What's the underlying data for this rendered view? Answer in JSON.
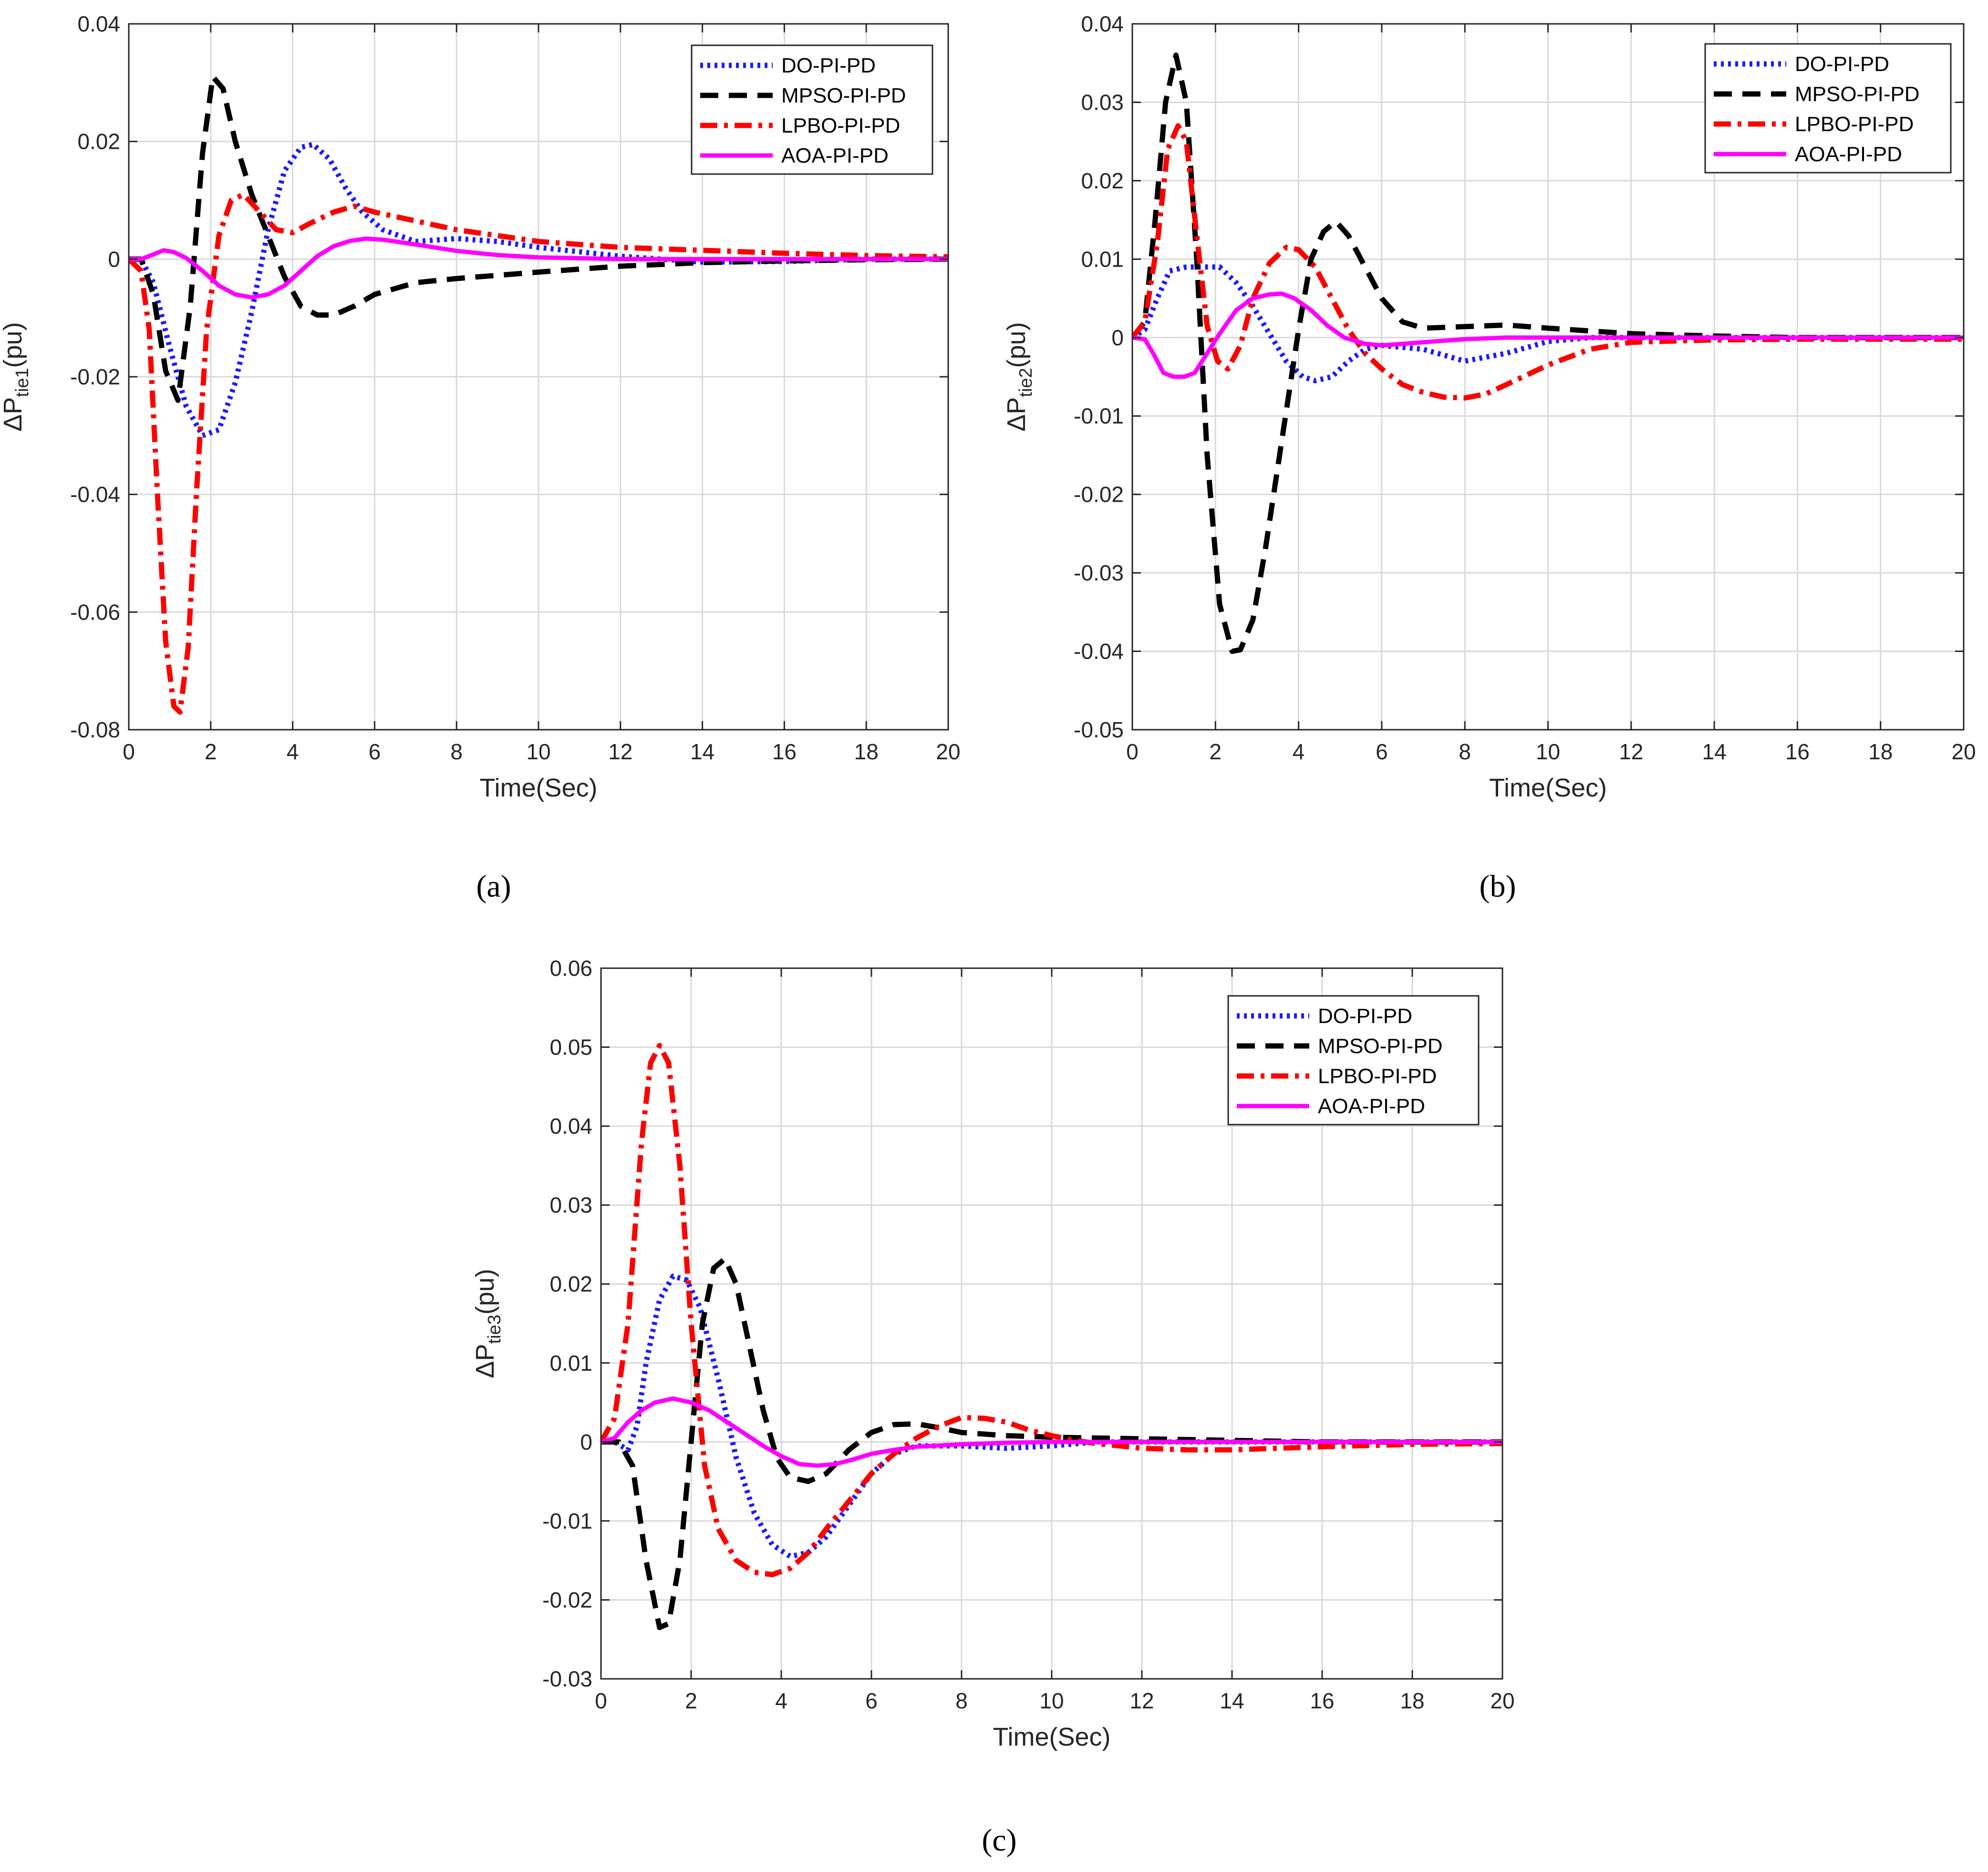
{
  "colors": {
    "DO-PI-PD": "#1a1aff",
    "MPSO-PI-PD": "#000000",
    "LPBO-PI-PD": "#ff0000",
    "AOA-PI-PD": "#ff00ff"
  },
  "chart_data": [
    {
      "type": "line",
      "panel_label": "(a)",
      "title": "",
      "xlabel": "Time(Sec)",
      "ylabel_main": "ΔP",
      "ylabel_sub": "tie1",
      "ylabel_tail": "(pu)",
      "xlim": [
        0,
        20
      ],
      "ylim": [
        -0.08,
        0.04
      ],
      "xticks": [
        0,
        2,
        4,
        6,
        8,
        10,
        12,
        14,
        16,
        18,
        20
      ],
      "yticks": [
        -0.08,
        -0.06,
        -0.04,
        -0.02,
        0,
        0.02,
        0.04
      ],
      "xtick_labels": [
        "0",
        "2",
        "4",
        "6",
        "8",
        "10",
        "12",
        "14",
        "16",
        "18",
        "20"
      ],
      "ytick_labels": [
        "-0.08",
        "-0.06",
        "-0.04",
        "-0.02",
        "0",
        "0.02",
        "0.04"
      ],
      "grid": true,
      "legend_position": "top-right",
      "series": [
        {
          "name": "DO-PI-PD",
          "style": "dotted",
          "x": [
            0,
            0.3,
            0.6,
            1.0,
            1.4,
            1.8,
            2.2,
            2.6,
            3.0,
            3.4,
            3.8,
            4.2,
            4.5,
            4.9,
            5.3,
            5.7,
            6.2,
            7,
            8,
            9,
            10,
            12,
            14,
            16,
            18,
            20
          ],
          "y": [
            0,
            0,
            -0.004,
            -0.015,
            -0.025,
            -0.03,
            -0.029,
            -0.021,
            -0.009,
            0.005,
            0.015,
            0.019,
            0.0195,
            0.017,
            0.012,
            0.008,
            0.005,
            0.003,
            0.0035,
            0.003,
            0.002,
            0.0005,
            -0.0005,
            -0.0004,
            0,
            0
          ]
        },
        {
          "name": "MPSO-PI-PD",
          "style": "dashed",
          "x": [
            0,
            0.3,
            0.6,
            0.9,
            1.2,
            1.5,
            1.8,
            2.05,
            2.3,
            2.6,
            3.0,
            3.4,
            3.8,
            4.2,
            4.6,
            5.0,
            5.5,
            6.0,
            7,
            8,
            10,
            12,
            14,
            16,
            18,
            20
          ],
          "y": [
            0,
            0,
            -0.006,
            -0.019,
            -0.024,
            -0.008,
            0.018,
            0.031,
            0.029,
            0.02,
            0.011,
            0.004,
            -0.003,
            -0.008,
            -0.0095,
            -0.0095,
            -0.008,
            -0.006,
            -0.004,
            -0.0033,
            -0.0022,
            -0.0012,
            -0.0006,
            -0.0003,
            -0.0001,
            0
          ]
        },
        {
          "name": "LPBO-PI-PD",
          "style": "dashdot",
          "x": [
            0,
            0.3,
            0.5,
            0.7,
            0.9,
            1.1,
            1.25,
            1.45,
            1.65,
            1.9,
            2.2,
            2.5,
            2.8,
            3.2,
            3.6,
            4.0,
            4.4,
            5.0,
            5.5,
            6,
            7,
            8,
            10,
            12,
            14,
            16,
            18,
            20
          ],
          "y": [
            0,
            -0.002,
            -0.012,
            -0.04,
            -0.065,
            -0.076,
            -0.077,
            -0.066,
            -0.04,
            -0.012,
            0.004,
            0.01,
            0.011,
            0.008,
            0.005,
            0.0045,
            0.006,
            0.008,
            0.009,
            0.008,
            0.0065,
            0.005,
            0.003,
            0.002,
            0.0015,
            0.001,
            0.0006,
            0.0004
          ]
        },
        {
          "name": "AOA-PI-PD",
          "style": "solid",
          "x": [
            0,
            0.3,
            0.6,
            0.85,
            1.1,
            1.4,
            1.8,
            2.2,
            2.6,
            3.0,
            3.4,
            3.8,
            4.2,
            4.6,
            5.0,
            5.4,
            5.8,
            6.2,
            7,
            8,
            9,
            10,
            12,
            14,
            16,
            18,
            20
          ],
          "y": [
            0,
            0,
            0.0008,
            0.0015,
            0.0012,
            0.0002,
            -0.002,
            -0.0045,
            -0.006,
            -0.0065,
            -0.006,
            -0.0045,
            -0.002,
            0.0005,
            0.0022,
            0.0031,
            0.0035,
            0.0033,
            0.0025,
            0.0014,
            0.0007,
            0.0003,
            0,
            0,
            0,
            0,
            0
          ]
        }
      ]
    },
    {
      "type": "line",
      "panel_label": "(b)",
      "title": "",
      "xlabel": "Time(Sec)",
      "ylabel_main": "ΔP",
      "ylabel_sub": "tie2",
      "ylabel_tail": "(pu)",
      "xlim": [
        0,
        20
      ],
      "ylim": [
        -0.05,
        0.04
      ],
      "xticks": [
        0,
        2,
        4,
        6,
        8,
        10,
        12,
        14,
        16,
        18,
        20
      ],
      "yticks": [
        -0.05,
        -0.04,
        -0.03,
        -0.02,
        -0.01,
        0,
        0.01,
        0.02,
        0.03,
        0.04
      ],
      "xtick_labels": [
        "0",
        "2",
        "4",
        "6",
        "8",
        "10",
        "12",
        "14",
        "16",
        "18",
        "20"
      ],
      "ytick_labels": [
        "-0.05",
        "-0.04",
        "-0.03",
        "-0.02",
        "-0.01",
        "0",
        "0.01",
        "0.02",
        "0.03",
        "0.04"
      ],
      "grid": true,
      "legend_position": "top-right",
      "series": [
        {
          "name": "DO-PI-PD",
          "style": "dotted",
          "x": [
            0,
            0.3,
            0.6,
            0.9,
            1.3,
            1.7,
            2.1,
            2.5,
            2.9,
            3.3,
            3.7,
            4.1,
            4.4,
            4.8,
            5.2,
            5.6,
            6.0,
            7,
            8,
            9,
            10,
            11,
            12,
            14,
            16,
            18,
            20
          ],
          "y": [
            0,
            0.001,
            0.005,
            0.0085,
            0.009,
            0.009,
            0.009,
            0.007,
            0.004,
            0.0005,
            -0.003,
            -0.005,
            -0.0055,
            -0.005,
            -0.003,
            -0.0015,
            -0.001,
            -0.0015,
            -0.003,
            -0.002,
            -0.0005,
            0,
            0,
            0,
            0,
            0,
            0
          ]
        },
        {
          "name": "MPSO-PI-PD",
          "style": "dashed",
          "x": [
            0,
            0.3,
            0.55,
            0.8,
            1.05,
            1.3,
            1.55,
            1.8,
            2.1,
            2.4,
            2.6,
            2.9,
            3.2,
            3.6,
            4.0,
            4.3,
            4.6,
            4.9,
            5.2,
            5.6,
            6.0,
            6.5,
            7,
            8,
            9,
            10,
            12,
            14,
            16,
            18,
            20
          ],
          "y": [
            0,
            0.002,
            0.015,
            0.03,
            0.036,
            0.03,
            0.01,
            -0.015,
            -0.034,
            -0.04,
            -0.0398,
            -0.036,
            -0.027,
            -0.013,
            0.001,
            0.01,
            0.0135,
            0.0148,
            0.013,
            0.009,
            0.005,
            0.002,
            0.0012,
            0.0014,
            0.0016,
            0.0012,
            0.0005,
            0.0002,
            0,
            0,
            0
          ]
        },
        {
          "name": "LPBO-PI-PD",
          "style": "dashdot",
          "x": [
            0,
            0.3,
            0.6,
            0.85,
            1.1,
            1.3,
            1.55,
            1.8,
            2.05,
            2.3,
            2.6,
            2.9,
            3.3,
            3.7,
            4.0,
            4.4,
            4.8,
            5.2,
            5.6,
            6.0,
            6.5,
            7,
            7.5,
            8,
            8.5,
            9,
            10,
            11,
            12,
            14,
            16,
            18,
            20
          ],
          "y": [
            0,
            0.002,
            0.012,
            0.024,
            0.027,
            0.025,
            0.013,
            0.0015,
            -0.003,
            -0.004,
            -0.001,
            0.005,
            0.0095,
            0.0115,
            0.0112,
            0.009,
            0.005,
            0.001,
            -0.002,
            -0.004,
            -0.006,
            -0.007,
            -0.0076,
            -0.0077,
            -0.0072,
            -0.006,
            -0.0035,
            -0.0015,
            -0.0006,
            -0.0003,
            -0.0002,
            -0.0002,
            -0.0002
          ]
        },
        {
          "name": "AOA-PI-PD",
          "style": "solid",
          "x": [
            0,
            0.3,
            0.5,
            0.75,
            1.0,
            1.25,
            1.5,
            1.8,
            2.1,
            2.5,
            2.9,
            3.3,
            3.6,
            3.9,
            4.3,
            4.7,
            5.1,
            5.6,
            6.0,
            7,
            8,
            9,
            10,
            12,
            14,
            16,
            18,
            20
          ],
          "y": [
            0,
            -0.0002,
            -0.002,
            -0.0045,
            -0.005,
            -0.005,
            -0.0045,
            -0.002,
            0.0005,
            0.0035,
            0.005,
            0.0055,
            0.0056,
            0.005,
            0.0035,
            0.0015,
            0,
            -0.0008,
            -0.001,
            -0.0006,
            -0.0002,
            0,
            0,
            0,
            0,
            0,
            0,
            0
          ]
        }
      ]
    },
    {
      "type": "line",
      "panel_label": "(c)",
      "title": "",
      "xlabel": "Time(Sec)",
      "ylabel_main": "ΔP",
      "ylabel_sub": "tie3",
      "ylabel_tail": "(pu)",
      "xlim": [
        0,
        20
      ],
      "ylim": [
        -0.03,
        0.06
      ],
      "xticks": [
        0,
        2,
        4,
        6,
        8,
        10,
        12,
        14,
        16,
        18,
        20
      ],
      "yticks": [
        -0.03,
        -0.02,
        -0.01,
        0,
        0.01,
        0.02,
        0.03,
        0.04,
        0.05,
        0.06
      ],
      "xtick_labels": [
        "0",
        "2",
        "4",
        "6",
        "8",
        "10",
        "12",
        "14",
        "16",
        "18",
        "20"
      ],
      "ytick_labels": [
        "-0.03",
        "-0.02",
        "-0.01",
        "0",
        "0.01",
        "0.02",
        "0.03",
        "0.04",
        "0.05",
        "0.06"
      ],
      "grid": true,
      "legend_position": "top-right",
      "series": [
        {
          "name": "DO-PI-PD",
          "style": "dotted",
          "x": [
            0,
            0.3,
            0.6,
            0.8,
            1.0,
            1.3,
            1.6,
            1.9,
            2.2,
            2.6,
            3.0,
            3.4,
            3.8,
            4.2,
            4.6,
            5.0,
            5.5,
            6.0,
            6.5,
            7,
            8,
            9,
            10,
            11,
            12,
            14,
            16,
            18,
            20
          ],
          "y": [
            0,
            0,
            -0.001,
            0.002,
            0.01,
            0.018,
            0.021,
            0.0205,
            0.017,
            0.008,
            -0.002,
            -0.009,
            -0.013,
            -0.0145,
            -0.014,
            -0.012,
            -0.008,
            -0.004,
            -0.0015,
            -0.0005,
            -0.0005,
            -0.0008,
            -0.0005,
            0,
            0,
            0,
            0,
            0,
            0
          ]
        },
        {
          "name": "MPSO-PI-PD",
          "style": "dashed",
          "x": [
            0,
            0.4,
            0.7,
            1.0,
            1.3,
            1.5,
            1.75,
            2.0,
            2.25,
            2.5,
            2.75,
            3.0,
            3.3,
            3.6,
            3.9,
            4.2,
            4.6,
            5.0,
            5.5,
            6.0,
            6.5,
            7.0,
            7.5,
            8,
            9,
            10,
            12,
            14,
            16,
            18,
            20
          ],
          "y": [
            0,
            0,
            -0.003,
            -0.015,
            -0.0235,
            -0.023,
            -0.015,
            0.0,
            0.015,
            0.022,
            0.0232,
            0.02,
            0.012,
            0.004,
            -0.002,
            -0.0045,
            -0.005,
            -0.004,
            -0.001,
            0.0012,
            0.0022,
            0.0023,
            0.0018,
            0.0012,
            0.0008,
            0.0006,
            0.0004,
            0.0002,
            0,
            0,
            0
          ]
        },
        {
          "name": "LPBO-PI-PD",
          "style": "dashdot",
          "x": [
            0,
            0.3,
            0.6,
            0.9,
            1.1,
            1.3,
            1.5,
            1.75,
            2.0,
            2.3,
            2.6,
            3.0,
            3.4,
            3.8,
            4.2,
            4.6,
            5.0,
            5.5,
            6.0,
            6.5,
            7.0,
            7.5,
            8.0,
            8.5,
            9.0,
            9.5,
            10,
            10.5,
            11,
            12,
            13,
            14,
            15,
            16,
            18,
            20
          ],
          "y": [
            0,
            0.003,
            0.015,
            0.038,
            0.048,
            0.0502,
            0.048,
            0.035,
            0.015,
            -0.003,
            -0.011,
            -0.015,
            -0.0165,
            -0.0168,
            -0.016,
            -0.014,
            -0.011,
            -0.0075,
            -0.004,
            -0.0015,
            0.0005,
            0.002,
            0.0031,
            0.003,
            0.0025,
            0.0015,
            0.0008,
            0.0002,
            -0.0002,
            -0.0008,
            -0.001,
            -0.001,
            -0.0008,
            -0.0006,
            -0.0003,
            -0.0002
          ]
        },
        {
          "name": "AOA-PI-PD",
          "style": "solid",
          "x": [
            0,
            0.3,
            0.6,
            0.9,
            1.2,
            1.6,
            2.0,
            2.4,
            2.8,
            3.2,
            3.6,
            4.0,
            4.4,
            4.8,
            5.2,
            5.6,
            6.0,
            6.5,
            7,
            8,
            9,
            10,
            12,
            14,
            16,
            18,
            20
          ],
          "y": [
            0,
            0.0005,
            0.0025,
            0.004,
            0.005,
            0.0055,
            0.005,
            0.004,
            0.0025,
            0.001,
            -0.0005,
            -0.0018,
            -0.0028,
            -0.003,
            -0.0028,
            -0.0022,
            -0.0015,
            -0.001,
            -0.0006,
            -0.0003,
            -0.0001,
            0,
            0,
            0,
            0,
            0,
            0
          ]
        }
      ]
    }
  ]
}
